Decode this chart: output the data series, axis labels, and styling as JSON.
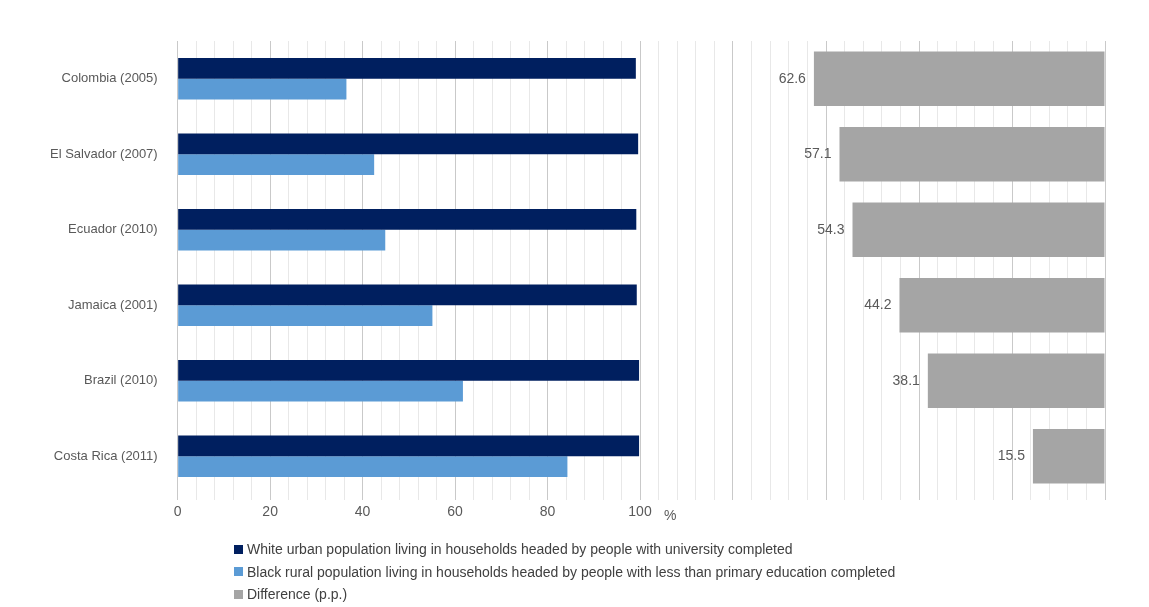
{
  "chart_data": [
    {
      "type": "bar",
      "orientation": "horizontal",
      "categories": [
        "Colombia (2005)",
        "El Salvador (2007)",
        "Ecuador (2010)",
        "Jamaica (2001)",
        "Brazil (2010)",
        "Costa Rica (2011)"
      ],
      "series": [
        {
          "name": "White urban population living in households headed by people with university completed",
          "color": "#001f5f",
          "values": [
            99.1,
            99.6,
            99.2,
            99.3,
            99.8,
            99.8
          ]
        },
        {
          "name": "Black rural population living in households headed by people with less than primary education completed",
          "color": "#5b9bd5",
          "values": [
            36.5,
            42.5,
            44.9,
            55.1,
            61.7,
            84.3
          ]
        }
      ],
      "xlim": [
        0,
        100
      ],
      "xticks": [
        0,
        {
          "value": 4,
          "label": null
        },
        {
          "value": 8,
          "label": null
        },
        {
          "value": 12,
          "label": null
        },
        {
          "value": 16,
          "label": null
        },
        20,
        {
          "value": 24,
          "label": null
        },
        {
          "value": 28,
          "label": null
        },
        {
          "value": 32,
          "label": null
        },
        {
          "value": 36,
          "label": null
        },
        40,
        {
          "value": 44,
          "label": null
        },
        {
          "value": 48,
          "label": null
        },
        {
          "value": 52,
          "label": null
        },
        {
          "value": 56,
          "label": null
        },
        60,
        {
          "value": 64,
          "label": null
        },
        {
          "value": 68,
          "label": null
        },
        {
          "value": 72,
          "label": null
        },
        {
          "value": 76,
          "label": null
        },
        80,
        {
          "value": 84,
          "label": null
        },
        {
          "value": 88,
          "label": null
        },
        {
          "value": 92,
          "label": null
        },
        {
          "value": 96,
          "label": null
        },
        100
      ],
      "xlabel": "%",
      "grid": "x",
      "legend": "bottom"
    },
    {
      "type": "bar",
      "orientation": "horizontal",
      "categories": [
        null,
        null,
        null,
        null,
        null,
        null
      ],
      "series": [
        {
          "name": "Difference (p.p.)",
          "color": "#a5a5a5",
          "values": [
            62.6,
            57.1,
            54.3,
            44.2,
            38.1,
            15.5
          ]
        }
      ],
      "xlim": [
        100,
        0
      ],
      "xticks": [
        {
          "value": 0,
          "label": null
        },
        {
          "value": 4,
          "label": null
        },
        {
          "value": 8,
          "label": null
        },
        {
          "value": 12,
          "label": null
        },
        {
          "value": 16,
          "label": null
        },
        {
          "value": 20,
          "label": null
        },
        {
          "value": 24,
          "label": null
        },
        {
          "value": 28,
          "label": null
        },
        {
          "value": 32,
          "label": null
        },
        {
          "value": 36,
          "label": null
        },
        {
          "value": 40,
          "label": null
        },
        {
          "value": 44,
          "label": null
        },
        {
          "value": 48,
          "label": null
        },
        {
          "value": 52,
          "label": null
        },
        {
          "value": 56,
          "label": null
        },
        {
          "value": 60,
          "label": null
        },
        {
          "value": 64,
          "label": null
        },
        {
          "value": 68,
          "label": null
        },
        {
          "value": 72,
          "label": null
        },
        {
          "value": 76,
          "label": null
        },
        {
          "value": 80,
          "label": null
        },
        {
          "value": 84,
          "label": null
        },
        {
          "value": 88,
          "label": null
        },
        {
          "value": 92,
          "label": null
        },
        {
          "value": 96,
          "label": null
        },
        {
          "value": 100,
          "label": null
        }
      ],
      "tick_labels": false,
      "data_labels": true,
      "grid": "x",
      "legend": "bottom"
    }
  ]
}
